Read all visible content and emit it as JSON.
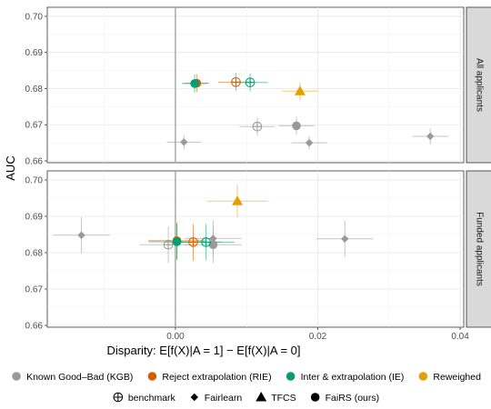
{
  "chart_data": {
    "type": "scatter",
    "title": "",
    "xlabel": "Disparity: E[f(X)|A = 1] − E[f(X)|A = 0]",
    "ylabel": "AUC",
    "xlim": [
      -0.018,
      0.0405
    ],
    "ylim": [
      0.6595,
      0.7025
    ],
    "x_ticks": [
      0.0,
      0.02,
      0.04
    ],
    "x_tick_labels": [
      "0.00",
      "0.02",
      "0.04"
    ],
    "y_ticks": [
      0.66,
      0.67,
      0.68,
      0.69,
      0.7
    ],
    "y_tick_labels": [
      "0.66",
      "0.67",
      "0.68",
      "0.69",
      "0.70"
    ],
    "vline_x": 0,
    "grid": true,
    "legend_position": "bottom",
    "colors": {
      "Known Good–Bad (KGB)": "#999999",
      "Reject extrapolation (RIE)": "#D55E00",
      "Inter & extrapolation (IE)": "#009E73",
      "Reweighed": "#E69F00"
    },
    "legend": {
      "color_entries": [
        "Known Good–Bad (KGB)",
        "Reject extrapolation (RIE)",
        "Inter & extrapolation (IE)",
        "Reweighed"
      ],
      "shape_entries": [
        {
          "label": "benchmark",
          "shape": "circle-plus"
        },
        {
          "label": "Fairlearn",
          "shape": "diamond"
        },
        {
          "label": "TFCS",
          "shape": "triangle"
        },
        {
          "label": "FaiRS (ours)",
          "shape": "circle"
        }
      ]
    },
    "panels": [
      {
        "label": "All applicants",
        "points": [
          {
            "group": "Known Good–Bad (KGB)",
            "method": "Fairlearn",
            "x": 0.0012,
            "y": 0.6652,
            "x_err": 0.0024,
            "y_err": 0.002
          },
          {
            "group": "Known Good–Bad (KGB)",
            "method": "benchmark",
            "x": 0.0115,
            "y": 0.6695,
            "x_err": 0.0025,
            "y_err": 0.0025
          },
          {
            "group": "Known Good–Bad (KGB)",
            "method": "FaiRS (ours)",
            "x": 0.017,
            "y": 0.6697,
            "x_err": 0.0025,
            "y_err": 0.0025
          },
          {
            "group": "Known Good–Bad (KGB)",
            "method": "Fairlearn",
            "x": 0.0188,
            "y": 0.665,
            "x_err": 0.0025,
            "y_err": 0.0018
          },
          {
            "group": "Known Good–Bad (KGB)",
            "method": "Fairlearn",
            "x": 0.0358,
            "y": 0.6668,
            "x_err": 0.0025,
            "y_err": 0.0022
          },
          {
            "group": "Reject extrapolation (RIE)",
            "method": "FaiRS (ours)",
            "x": 0.003,
            "y": 0.6815,
            "x_err": 0.0018,
            "y_err": 0.0025
          },
          {
            "group": "Reject extrapolation (RIE)",
            "method": "benchmark",
            "x": 0.0085,
            "y": 0.6818,
            "x_err": 0.0025,
            "y_err": 0.0025
          },
          {
            "group": "Inter & extrapolation (IE)",
            "method": "FaiRS (ours)",
            "x": 0.0027,
            "y": 0.6814,
            "x_err": 0.0018,
            "y_err": 0.0025
          },
          {
            "group": "Inter & extrapolation (IE)",
            "method": "benchmark",
            "x": 0.0105,
            "y": 0.6817,
            "x_err": 0.0025,
            "y_err": 0.0025
          },
          {
            "group": "Reweighed",
            "method": "TFCS",
            "x": 0.0175,
            "y": 0.6793,
            "x_err": 0.0025,
            "y_err": 0.0025
          }
        ]
      },
      {
        "label": "Funded applicants",
        "points": [
          {
            "group": "Known Good–Bad (KGB)",
            "method": "Fairlearn",
            "x": -0.0132,
            "y": 0.6848,
            "x_err": 0.004,
            "y_err": 0.005
          },
          {
            "group": "Known Good–Bad (KGB)",
            "method": "benchmark",
            "x": -0.001,
            "y": 0.6822,
            "x_err": 0.004,
            "y_err": 0.005
          },
          {
            "group": "Known Good–Bad (KGB)",
            "method": "Fairlearn",
            "x": 0.0053,
            "y": 0.6839,
            "x_err": 0.004,
            "y_err": 0.005
          },
          {
            "group": "Known Good–Bad (KGB)",
            "method": "FaiRS (ours)",
            "x": 0.0053,
            "y": 0.6822,
            "x_err": 0.004,
            "y_err": 0.005
          },
          {
            "group": "Known Good–Bad (KGB)",
            "method": "Fairlearn",
            "x": 0.0238,
            "y": 0.6838,
            "x_err": 0.004,
            "y_err": 0.005
          },
          {
            "group": "Reject extrapolation (RIE)",
            "method": "FaiRS (ours)",
            "x": 0.0002,
            "y": 0.6833,
            "x_err": 0.004,
            "y_err": 0.005
          },
          {
            "group": "Reject extrapolation (RIE)",
            "method": "benchmark",
            "x": 0.0025,
            "y": 0.6829,
            "x_err": 0.004,
            "y_err": 0.005
          },
          {
            "group": "Inter & extrapolation (IE)",
            "method": "FaiRS (ours)",
            "x": 0.0002,
            "y": 0.683,
            "x_err": 0.004,
            "y_err": 0.005
          },
          {
            "group": "Inter & extrapolation (IE)",
            "method": "benchmark",
            "x": 0.0043,
            "y": 0.6829,
            "x_err": 0.004,
            "y_err": 0.005
          },
          {
            "group": "Reweighed",
            "method": "TFCS",
            "x": 0.0087,
            "y": 0.6942,
            "x_err": 0.0043,
            "y_err": 0.0045
          }
        ]
      }
    ]
  }
}
